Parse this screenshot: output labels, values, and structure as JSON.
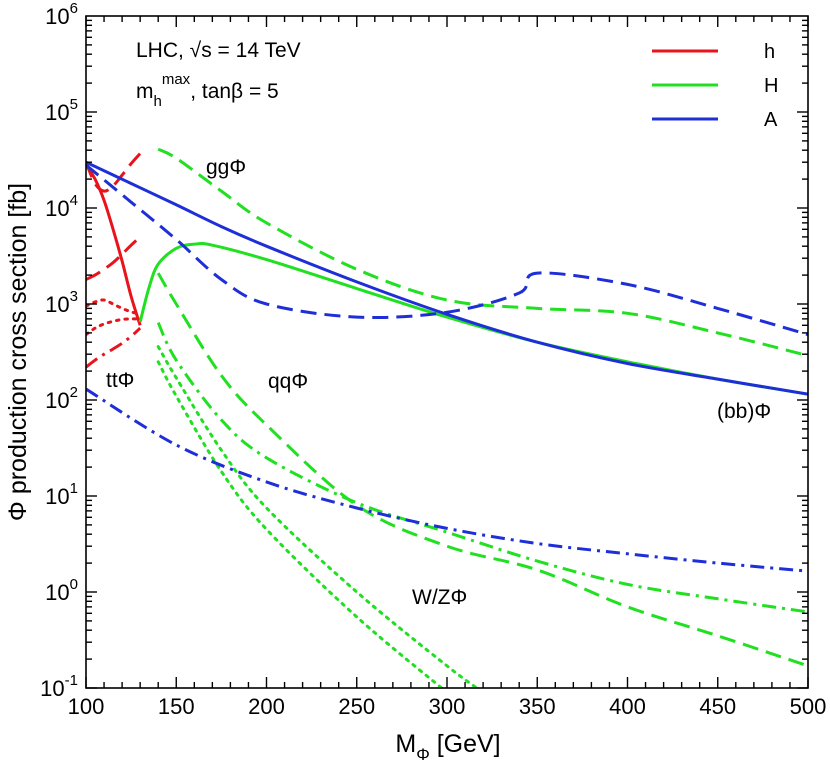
{
  "chart_data": {
    "type": "line",
    "x_axis": {
      "label_main": "M",
      "label_sub": "Φ",
      "label_unit": " [GeV]",
      "range": [
        100,
        500
      ],
      "ticks": [
        100,
        150,
        200,
        250,
        300,
        350,
        400,
        450,
        500
      ]
    },
    "y_axis": {
      "label": "Φ production cross section [fb]",
      "scale": "log",
      "range": [
        0.1,
        1000000
      ],
      "ticks": [
        {
          "value": 0.1,
          "base": "10",
          "exp": "-1"
        },
        {
          "value": 1,
          "base": "10",
          "exp": "0"
        },
        {
          "value": 10,
          "base": "10",
          "exp": "1"
        },
        {
          "value": 100,
          "base": "10",
          "exp": "2"
        },
        {
          "value": 1000,
          "base": "10",
          "exp": "3"
        },
        {
          "value": 10000,
          "base": "10",
          "exp": "4"
        },
        {
          "value": 100000,
          "base": "10",
          "exp": "5"
        },
        {
          "value": 1000000,
          "base": "10",
          "exp": "6"
        }
      ]
    },
    "annotations": {
      "line1": "LHC, √s = 14 TeV",
      "line2_m": "m",
      "line2_sub": "h",
      "line2_sup": "max",
      "line2_rest": ", tanβ = 5",
      "ggPhi": "ggΦ",
      "qqPhi": "qqΦ",
      "ttPhi": "ttΦ",
      "WZPhi": "W/ZΦ",
      "bbPhi": "(bb)Φ"
    },
    "legend": {
      "position": "top-right",
      "entries": [
        {
          "label": "h",
          "color": "#e8141c"
        },
        {
          "label": "H",
          "color": "#21e021"
        },
        {
          "label": "A",
          "color": "#1f2fd8"
        }
      ]
    },
    "colors": {
      "h": "#e8141c",
      "H": "#21e021",
      "A": "#1f2fd8"
    },
    "series": [
      {
        "boson": "h",
        "process": "ggΦ",
        "style": "dashed",
        "x": [
          100,
          105,
          110,
          115,
          120,
          125,
          130
        ],
        "y": [
          30000,
          18000,
          15000,
          17000,
          22000,
          29000,
          37000
        ]
      },
      {
        "boson": "h",
        "process": "(bb)Φ",
        "style": "solid",
        "x": [
          100,
          105,
          110,
          115,
          120,
          125,
          130
        ],
        "y": [
          28000,
          20000,
          12000,
          6000,
          2800,
          1200,
          600
        ]
      },
      {
        "boson": "h",
        "process": "qqΦ",
        "style": "dashed",
        "x": [
          100,
          105,
          110,
          115,
          120,
          125,
          130
        ],
        "y": [
          1800,
          2000,
          2300,
          2700,
          3300,
          4100,
          5000
        ]
      },
      {
        "boson": "h",
        "process": "W/ZΦ",
        "style": "dotted",
        "x": [
          100,
          105,
          110,
          115,
          120,
          125,
          130
        ],
        "y": [
          950,
          1050,
          1100,
          1000,
          900,
          830,
          780
        ]
      },
      {
        "boson": "h",
        "process": "W/ZΦ",
        "style": "dotted",
        "x": [
          100,
          105,
          110,
          115,
          120,
          125,
          130
        ],
        "y": [
          480,
          560,
          620,
          660,
          690,
          700,
          700
        ]
      },
      {
        "boson": "h",
        "process": "ttΦ",
        "style": "dashdot",
        "x": [
          100,
          105,
          110,
          115,
          120,
          125,
          130
        ],
        "y": [
          220,
          260,
          300,
          340,
          390,
          460,
          560
        ]
      },
      {
        "boson": "H",
        "process": "ggΦ",
        "style": "dashed",
        "x": [
          140,
          150,
          175,
          200,
          250,
          300,
          350,
          400,
          450,
          500
        ],
        "y": [
          41000,
          33000,
          15000,
          7000,
          2300,
          1100,
          900,
          800,
          500,
          290
        ]
      },
      {
        "boson": "H",
        "process": "(bb)Φ",
        "style": "solid",
        "x": [
          130,
          135,
          140,
          150,
          160,
          170,
          200,
          250,
          300,
          350,
          400,
          450,
          500
        ],
        "y": [
          650,
          1500,
          2600,
          3800,
          4200,
          4100,
          2900,
          1450,
          730,
          400,
          250,
          165,
          115
        ]
      },
      {
        "boson": "H",
        "process": "qqΦ",
        "style": "dashed",
        "x": [
          140,
          150,
          175,
          200,
          250,
          300,
          350,
          400,
          450,
          500
        ],
        "y": [
          2100,
          1000,
          180,
          55,
          8,
          3,
          1.7,
          0.7,
          0.35,
          0.17
        ]
      },
      {
        "boson": "H",
        "process": "ttΦ",
        "style": "dashdot",
        "x": [
          140,
          150,
          175,
          200,
          250,
          300,
          350,
          400,
          450,
          500
        ],
        "y": [
          640,
          260,
          62,
          25,
          8.5,
          4.2,
          2.1,
          1.2,
          0.85,
          0.62
        ]
      },
      {
        "boson": "H",
        "process": "W/ZΦ",
        "style": "dotted",
        "x": [
          140,
          150,
          175,
          200,
          250,
          300,
          320
        ],
        "y": [
          360,
          170,
          30,
          7.5,
          1.0,
          0.17,
          0.09
        ]
      },
      {
        "boson": "H",
        "process": "W/ZΦ",
        "style": "dotted",
        "x": [
          140,
          150,
          175,
          200,
          250,
          300
        ],
        "y": [
          250,
          110,
          18,
          4.5,
          0.55,
          0.09
        ]
      },
      {
        "boson": "A",
        "process": "(bb)Φ",
        "style": "solid",
        "x": [
          100,
          125,
          150,
          175,
          200,
          250,
          300,
          350,
          400,
          450,
          500
        ],
        "y": [
          30000,
          18000,
          10800,
          6400,
          4000,
          1700,
          780,
          400,
          240,
          165,
          115
        ]
      },
      {
        "boson": "A",
        "process": "ggΦ",
        "style": "dashed",
        "x": [
          100,
          125,
          150,
          175,
          200,
          250,
          300,
          340,
          350,
          400,
          450,
          500
        ],
        "y": [
          28000,
          11500,
          4700,
          1800,
          1000,
          730,
          820,
          1300,
          2100,
          1600,
          900,
          480
        ]
      },
      {
        "boson": "A",
        "process": "ttΦ",
        "style": "dashdot",
        "x": [
          100,
          150,
          200,
          250,
          300,
          350,
          400,
          450,
          500
        ],
        "y": [
          130,
          34,
          14,
          7.5,
          4.6,
          3.2,
          2.5,
          2.0,
          1.65
        ]
      }
    ]
  }
}
